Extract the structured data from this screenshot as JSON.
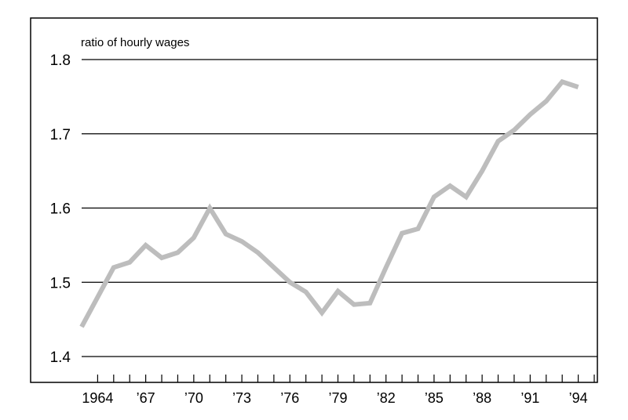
{
  "chart_data": {
    "type": "line",
    "title": "",
    "ylabel": "ratio of hourly wages",
    "xlabel": "",
    "ylim": [
      1.4,
      1.8
    ],
    "yticks": [
      1.4,
      1.5,
      1.6,
      1.7,
      1.8
    ],
    "ytick_labels": [
      "1.4",
      "1.5",
      "1.6",
      "1.7",
      "1.8"
    ],
    "xlim": [
      1963,
      1995
    ],
    "xticks": [
      1964,
      1967,
      1970,
      1973,
      1976,
      1979,
      1982,
      1985,
      1988,
      1991,
      1994
    ],
    "xtick_labels": [
      "1964",
      "’67",
      "’70",
      "’73",
      "’76",
      "’79",
      "’82",
      "’85",
      "’88",
      "’91",
      "’94"
    ],
    "grid": "horizontal",
    "series_color": "#bdbdbd",
    "series": [
      {
        "x": [
          1963,
          1964,
          1965,
          1966,
          1967,
          1968,
          1969,
          1970,
          1971,
          1972,
          1973,
          1974,
          1975,
          1976,
          1977,
          1978,
          1979,
          1980,
          1981,
          1982,
          1983,
          1984,
          1985,
          1986,
          1987,
          1988,
          1989,
          1990,
          1991,
          1992,
          1993,
          1994
        ],
        "values": [
          1.44,
          1.48,
          1.52,
          1.527,
          1.55,
          1.533,
          1.54,
          1.56,
          1.6,
          1.565,
          1.555,
          1.54,
          1.52,
          1.5,
          1.487,
          1.459,
          1.488,
          1.47,
          1.472,
          1.52,
          1.566,
          1.572,
          1.615,
          1.63,
          1.615,
          1.65,
          1.69,
          1.705,
          1.726,
          1.744,
          1.77,
          1.763
        ]
      }
    ]
  }
}
